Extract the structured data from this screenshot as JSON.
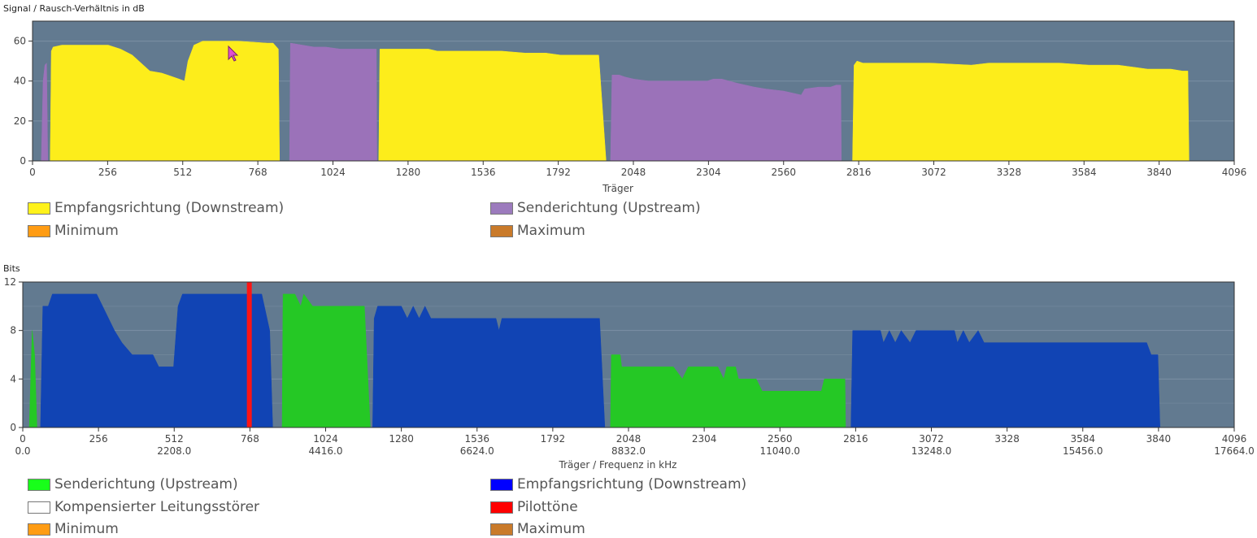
{
  "chart_data": [
    {
      "type": "area",
      "title": "Signal / Rausch-Verhältnis in dB",
      "xlabel": "Träger",
      "ylabel": "",
      "xlim": [
        0,
        4096
      ],
      "ylim": [
        0,
        70
      ],
      "x_ticks": [
        0,
        256,
        512,
        768,
        1024,
        1280,
        1536,
        1792,
        2048,
        2304,
        2560,
        2816,
        3072,
        3328,
        3584,
        3840,
        4096
      ],
      "y_ticks": [
        0,
        20,
        40,
        60
      ],
      "grid": true,
      "background": "#627a90",
      "series": [
        {
          "name": "Sendrichtung (Upstream)",
          "label": "Senderichtung (Upstream)",
          "color": "#9b72b9",
          "segments": [
            [
              [
                30,
                0
              ],
              [
                36,
                40
              ],
              [
                42,
                48
              ],
              [
                48,
                49
              ],
              [
                52,
                0
              ]
            ],
            [
              [
                876,
                0
              ],
              [
                879,
                59
              ],
              [
                920,
                58
              ],
              [
                960,
                57
              ],
              [
                1000,
                57
              ],
              [
                1050,
                56
              ],
              [
                1100,
                56
              ],
              [
                1172,
                56
              ],
              [
                1174,
                0
              ]
            ],
            [
              [
                1970,
                0
              ],
              [
                1975,
                43
              ],
              [
                2000,
                43
              ],
              [
                2020,
                42
              ],
              [
                2050,
                41
              ],
              [
                2100,
                40
              ],
              [
                2150,
                40
              ],
              [
                2200,
                40
              ],
              [
                2300,
                40
              ],
              [
                2320,
                41
              ],
              [
                2350,
                41
              ],
              [
                2400,
                39
              ],
              [
                2460,
                37
              ],
              [
                2500,
                36
              ],
              [
                2560,
                35
              ],
              [
                2620,
                33
              ],
              [
                2632,
                36
              ],
              [
                2680,
                37
              ],
              [
                2720,
                37
              ],
              [
                2740,
                38
              ],
              [
                2755,
                38
              ],
              [
                2757,
                0
              ]
            ]
          ]
        },
        {
          "name": "Empfangsrichtung (Downstream)",
          "label": "Empfangsrichtung (Downstream)",
          "color": "#fded1b",
          "segments": [
            [
              [
                60,
                0
              ],
              [
                64,
                55
              ],
              [
                70,
                57
              ],
              [
                100,
                58
              ],
              [
                200,
                58
              ],
              [
                258,
                58
              ],
              [
                300,
                56
              ],
              [
                340,
                53
              ],
              [
                370,
                49
              ],
              [
                400,
                45
              ],
              [
                440,
                44
              ],
              [
                460,
                43
              ],
              [
                480,
                42
              ],
              [
                500,
                41
              ],
              [
                518,
                40
              ],
              [
                530,
                50
              ],
              [
                550,
                58
              ],
              [
                580,
                60
              ],
              [
                640,
                60
              ],
              [
                700,
                60
              ],
              [
                800,
                59
              ],
              [
                820,
                59
              ],
              [
                838,
                56
              ],
              [
                842,
                0
              ]
            ],
            [
              [
                1180,
                0
              ],
              [
                1184,
                56
              ],
              [
                1250,
                56
              ],
              [
                1350,
                56
              ],
              [
                1380,
                55
              ],
              [
                1500,
                55
              ],
              [
                1600,
                55
              ],
              [
                1680,
                54
              ],
              [
                1750,
                54
              ],
              [
                1800,
                53
              ],
              [
                1880,
                53
              ],
              [
                1930,
                53
              ],
              [
                1955,
                0
              ]
            ],
            [
              [
                2795,
                0
              ],
              [
                2800,
                48
              ],
              [
                2810,
                50
              ],
              [
                2830,
                49
              ],
              [
                2900,
                49
              ],
              [
                3000,
                49
              ],
              [
                3060,
                49
              ],
              [
                3200,
                48
              ],
              [
                3260,
                49
              ],
              [
                3400,
                49
              ],
              [
                3500,
                49
              ],
              [
                3600,
                48
              ],
              [
                3700,
                48
              ],
              [
                3750,
                47
              ],
              [
                3800,
                46
              ],
              [
                3880,
                46
              ],
              [
                3920,
                45
              ],
              [
                3938,
                45
              ],
              [
                3942,
                0
              ]
            ]
          ]
        }
      ],
      "legend": [
        {
          "label": "Empfangsrichtung (Downstream)",
          "color": "#fff21b"
        },
        {
          "label": "Senderichtung (Upstream)",
          "color": "#9c7bbd"
        },
        {
          "label": "Minimum",
          "color": "#ff9c14"
        },
        {
          "label": "Maximum",
          "color": "#c97a2a"
        }
      ]
    },
    {
      "type": "area",
      "title": "Bits",
      "xlabel": "Träger / Frequenz in kHz",
      "ylabel": "",
      "xlim": [
        0,
        4096
      ],
      "ylim": [
        0,
        12
      ],
      "x_ticks": [
        0,
        256,
        512,
        768,
        1024,
        1280,
        1536,
        1792,
        2048,
        2304,
        2560,
        2816,
        3072,
        3328,
        3584,
        3840,
        4096
      ],
      "freq_ticks": [
        "0.0",
        "2208.0",
        "4416.0",
        "6624.0",
        "8832.0",
        "11040.0",
        "13248.0",
        "15456.0",
        "17664.0"
      ],
      "y_ticks": [
        0,
        4,
        8,
        12
      ],
      "grid": true,
      "background": "#627a90",
      "series": [
        {
          "name": "Senderichtung (Upstream)",
          "label": "Senderichtung (Upstream)",
          "color": "#25c825",
          "segments": [
            [
              [
                22,
                0
              ],
              [
                28,
                5
              ],
              [
                32,
                8
              ],
              [
                40,
                6
              ],
              [
                48,
                0
              ]
            ],
            [
              [
                877,
                0
              ],
              [
                880,
                11
              ],
              [
                920,
                11
              ],
              [
                940,
                10
              ],
              [
                950,
                11
              ],
              [
                980,
                10
              ],
              [
                1030,
                10
              ],
              [
                1100,
                10
              ],
              [
                1155,
                10
              ],
              [
                1175,
                0
              ]
            ],
            [
              [
                1987,
                0
              ],
              [
                1990,
                6
              ],
              [
                2020,
                6
              ],
              [
                2025,
                5
              ],
              [
                2080,
                5
              ],
              [
                2200,
                5
              ],
              [
                2230,
                4
              ],
              [
                2250,
                5
              ],
              [
                2350,
                5
              ],
              [
                2370,
                4
              ],
              [
                2380,
                5
              ],
              [
                2410,
                5
              ],
              [
                2420,
                4
              ],
              [
                2480,
                4
              ],
              [
                2500,
                3
              ],
              [
                2650,
                3
              ],
              [
                2700,
                3
              ],
              [
                2710,
                4
              ],
              [
                2780,
                4
              ],
              [
                2782,
                0
              ]
            ]
          ]
        },
        {
          "name": "Empfangsrichtung (Downstream)",
          "label": "Empfangsrichtung (Downstream)",
          "color": "#1144b4",
          "segments": [
            [
              [
                60,
                0
              ],
              [
                68,
                10
              ],
              [
                86,
                10
              ],
              [
                100,
                11
              ],
              [
                250,
                11
              ],
              [
                270,
                10
              ],
              [
                290,
                9
              ],
              [
                310,
                8
              ],
              [
                335,
                7
              ],
              [
                370,
                6
              ],
              [
                440,
                6
              ],
              [
                460,
                5
              ],
              [
                510,
                5
              ],
              [
                525,
                10
              ],
              [
                540,
                11
              ],
              [
                760,
                11
              ],
              [
                790,
                11
              ],
              [
                808,
                11
              ],
              [
                835,
                8
              ],
              [
                845,
                0
              ]
            ],
            [
              [
                1183,
                0
              ],
              [
                1188,
                9
              ],
              [
                1200,
                10
              ],
              [
                1260,
                10
              ],
              [
                1280,
                10
              ],
              [
                1300,
                9
              ],
              [
                1320,
                10
              ],
              [
                1340,
                9
              ],
              [
                1360,
                10
              ],
              [
                1380,
                9
              ],
              [
                1400,
                9
              ],
              [
                1500,
                9
              ],
              [
                1600,
                9
              ],
              [
                1610,
                8
              ],
              [
                1620,
                9
              ],
              [
                1700,
                9
              ],
              [
                1800,
                9
              ],
              [
                1950,
                9
              ],
              [
                1968,
                0
              ]
            ],
            [
              [
                2800,
                0
              ],
              [
                2806,
                8
              ],
              [
                2830,
                8
              ],
              [
                2900,
                8
              ],
              [
                2910,
                7
              ],
              [
                2930,
                8
              ],
              [
                2950,
                7
              ],
              [
                2970,
                8
              ],
              [
                3000,
                7
              ],
              [
                3020,
                8
              ],
              [
                3050,
                8
              ],
              [
                3150,
                8
              ],
              [
                3160,
                7
              ],
              [
                3180,
                8
              ],
              [
                3200,
                7
              ],
              [
                3230,
                8
              ],
              [
                3250,
                7
              ],
              [
                3400,
                7
              ],
              [
                3600,
                7
              ],
              [
                3800,
                7
              ],
              [
                3815,
                6
              ],
              [
                3838,
                6
              ],
              [
                3845,
                0
              ]
            ]
          ]
        }
      ],
      "pilot_tones": {
        "label": "Pilottöne",
        "x": [
          766
        ],
        "color": "#ff1414"
      },
      "legend": [
        {
          "label": "Senderichtung (Upstream)",
          "color": "#18ff1a"
        },
        {
          "label": "Empfangsrichtung (Downstream)",
          "color": "#0000ff"
        },
        {
          "label": "Kompensierter Leitungsstörer",
          "color": "#ffffff"
        },
        {
          "label": "Pilottöne",
          "color": "#ff0000"
        },
        {
          "label": "Minimum",
          "color": "#ff9c14"
        },
        {
          "label": "Maximum",
          "color": "#c97a2a"
        }
      ]
    }
  ]
}
